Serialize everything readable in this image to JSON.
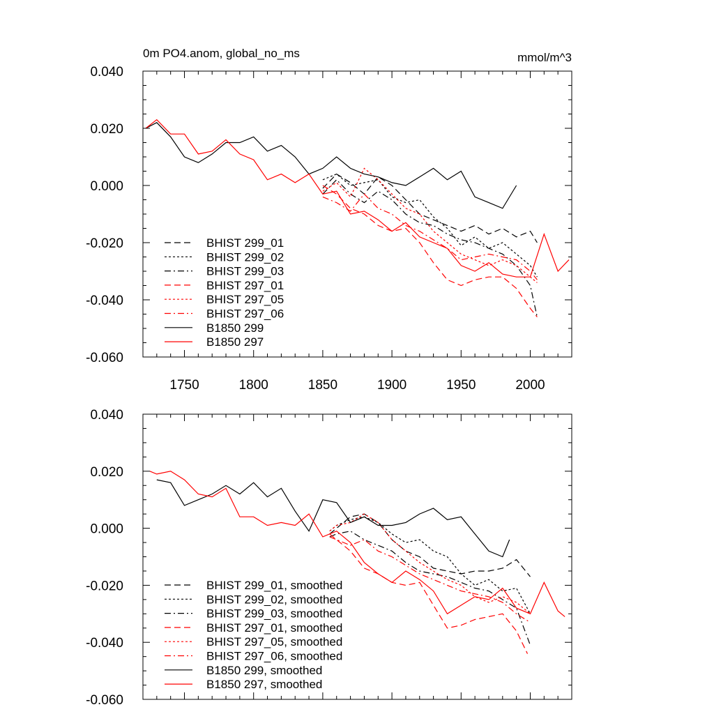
{
  "chart_data": [
    {
      "type": "line",
      "title": "0m PO4.anom, global_no_ms",
      "units": "mmol/m^3",
      "xlim": [
        1720,
        2030
      ],
      "ylim": [
        -0.06,
        0.04
      ],
      "yticks": [
        "0.040",
        "0.020",
        "0.000",
        "-0.020",
        "-0.040",
        "-0.060"
      ],
      "xticks": [
        "1750",
        "1800",
        "1850",
        "1900",
        "1950",
        "2000"
      ],
      "grid": false,
      "legend_position": "lower-left",
      "series": [
        {
          "name": "BHIST 299_01",
          "color": "#000000",
          "dash": "long-dash",
          "x": [
            1850,
            1860,
            1870,
            1880,
            1890,
            1900,
            1910,
            1920,
            1930,
            1940,
            1950,
            1960,
            1970,
            1980,
            1990,
            2000,
            2005
          ],
          "y": [
            -0.001,
            0.004,
            0.001,
            -0.003,
            0.003,
            0.0,
            -0.005,
            -0.01,
            -0.012,
            -0.014,
            -0.016,
            -0.014,
            -0.017,
            -0.015,
            -0.018,
            -0.016,
            -0.02
          ]
        },
        {
          "name": "BHIST 299_02",
          "color": "#000000",
          "dash": "short-dash",
          "x": [
            1850,
            1860,
            1870,
            1880,
            1890,
            1900,
            1910,
            1920,
            1930,
            1940,
            1950,
            1960,
            1970,
            1980,
            1990,
            2000,
            2005
          ],
          "y": [
            0.002,
            0.004,
            0.0,
            0.001,
            0.002,
            -0.004,
            -0.006,
            -0.005,
            -0.011,
            -0.015,
            -0.021,
            -0.018,
            -0.022,
            -0.02,
            -0.024,
            -0.028,
            -0.032
          ]
        },
        {
          "name": "BHIST 299_03",
          "color": "#000000",
          "dash": "dash-dot",
          "x": [
            1850,
            1860,
            1870,
            1880,
            1890,
            1900,
            1910,
            1920,
            1930,
            1940,
            1950,
            1960,
            1970,
            1980,
            1990,
            2000,
            2005
          ],
          "y": [
            -0.003,
            0.002,
            -0.003,
            -0.006,
            -0.002,
            -0.005,
            -0.01,
            -0.013,
            -0.014,
            -0.017,
            -0.019,
            -0.02,
            -0.022,
            -0.024,
            -0.028,
            -0.035,
            -0.046
          ]
        },
        {
          "name": "BHIST 297_01",
          "color": "#ff0000",
          "dash": "long-dash",
          "x": [
            1850,
            1860,
            1870,
            1880,
            1890,
            1900,
            1910,
            1920,
            1930,
            1940,
            1950,
            1960,
            1970,
            1980,
            1990,
            2000,
            2005
          ],
          "y": [
            0.0,
            -0.003,
            -0.008,
            -0.01,
            -0.014,
            -0.016,
            -0.015,
            -0.02,
            -0.027,
            -0.033,
            -0.035,
            -0.033,
            -0.032,
            -0.032,
            -0.036,
            -0.043,
            -0.046
          ]
        },
        {
          "name": "BHIST 297_05",
          "color": "#ff0000",
          "dash": "short-dash",
          "x": [
            1850,
            1860,
            1870,
            1880,
            1890,
            1900,
            1910,
            1920,
            1930,
            1940,
            1950,
            1960,
            1970,
            1980,
            1990,
            2000,
            2005
          ],
          "y": [
            -0.002,
            0.001,
            -0.004,
            0.006,
            0.002,
            -0.003,
            -0.008,
            -0.01,
            -0.016,
            -0.02,
            -0.024,
            -0.026,
            -0.028,
            -0.026,
            -0.028,
            -0.032,
            -0.034
          ]
        },
        {
          "name": "BHIST 297_06",
          "color": "#ff0000",
          "dash": "dash-dot",
          "x": [
            1850,
            1860,
            1870,
            1880,
            1890,
            1900,
            1910,
            1920,
            1930,
            1940,
            1950,
            1960,
            1970,
            1980,
            1990,
            2000,
            2005
          ],
          "y": [
            -0.004,
            -0.006,
            -0.009,
            -0.003,
            -0.008,
            -0.01,
            -0.014,
            -0.016,
            -0.019,
            -0.022,
            -0.026,
            -0.025,
            -0.024,
            -0.025,
            -0.026,
            -0.03,
            -0.033
          ]
        },
        {
          "name": "B1850 299",
          "color": "#000000",
          "dash": "solid",
          "x": [
            1722,
            1730,
            1740,
            1750,
            1760,
            1770,
            1780,
            1790,
            1800,
            1810,
            1820,
            1830,
            1840,
            1850,
            1860,
            1870,
            1880,
            1890,
            1900,
            1910,
            1920,
            1930,
            1940,
            1950,
            1960,
            1970,
            1980,
            1990
          ],
          "y": [
            0.02,
            0.022,
            0.017,
            0.01,
            0.008,
            0.011,
            0.015,
            0.015,
            0.017,
            0.012,
            0.014,
            0.01,
            0.004,
            0.006,
            0.01,
            0.006,
            0.004,
            0.003,
            0.001,
            0.0,
            0.003,
            0.006,
            0.002,
            0.005,
            -0.004,
            -0.006,
            -0.008,
            0.0
          ]
        },
        {
          "name": "B1850 297",
          "color": "#ff0000",
          "dash": "solid",
          "x": [
            1722,
            1730,
            1740,
            1750,
            1760,
            1770,
            1780,
            1790,
            1800,
            1810,
            1820,
            1830,
            1840,
            1850,
            1860,
            1870,
            1880,
            1890,
            1900,
            1910,
            1920,
            1930,
            1940,
            1950,
            1960,
            1970,
            1980,
            1990,
            2000,
            2010,
            2020,
            2028
          ],
          "y": [
            0.02,
            0.023,
            0.018,
            0.018,
            0.011,
            0.012,
            0.016,
            0.011,
            0.009,
            0.002,
            0.004,
            0.001,
            0.004,
            -0.003,
            -0.002,
            -0.01,
            -0.009,
            -0.012,
            -0.016,
            -0.013,
            -0.018,
            -0.02,
            -0.022,
            -0.028,
            -0.03,
            -0.027,
            -0.031,
            -0.032,
            -0.032,
            -0.017,
            -0.03,
            -0.026
          ]
        }
      ]
    },
    {
      "type": "line",
      "title": "",
      "units": "",
      "xlim": [
        1720,
        2030
      ],
      "ylim": [
        -0.06,
        0.04
      ],
      "yticks": [
        "0.040",
        "0.020",
        "0.000",
        "-0.020",
        "-0.040",
        "-0.060"
      ],
      "xticks": [],
      "grid": false,
      "legend_position": "lower-left",
      "series": [
        {
          "name": "BHIST 299_01, smoothed",
          "color": "#000000",
          "dash": "long-dash",
          "x": [
            1855,
            1860,
            1870,
            1880,
            1890,
            1900,
            1910,
            1920,
            1930,
            1940,
            1950,
            1960,
            1970,
            1980,
            1990,
            2000
          ],
          "y": [
            -0.002,
            0.0,
            0.004,
            0.005,
            0.002,
            -0.004,
            -0.008,
            -0.01,
            -0.014,
            -0.015,
            -0.016,
            -0.015,
            -0.015,
            -0.014,
            -0.011,
            -0.017
          ]
        },
        {
          "name": "BHIST 299_02, smoothed",
          "color": "#000000",
          "dash": "short-dash",
          "x": [
            1855,
            1860,
            1870,
            1880,
            1890,
            1900,
            1910,
            1920,
            1930,
            1940,
            1950,
            1960,
            1970,
            1980,
            1990,
            2000
          ],
          "y": [
            -0.001,
            0.001,
            0.003,
            0.004,
            0.002,
            -0.002,
            -0.005,
            -0.004,
            -0.008,
            -0.01,
            -0.016,
            -0.02,
            -0.018,
            -0.022,
            -0.021,
            -0.03
          ]
        },
        {
          "name": "BHIST 299_03, smoothed",
          "color": "#000000",
          "dash": "dash-dot",
          "x": [
            1855,
            1860,
            1870,
            1880,
            1890,
            1900,
            1910,
            1920,
            1930,
            1940,
            1950,
            1960,
            1970,
            1980,
            1990,
            2000
          ],
          "y": [
            -0.003,
            -0.002,
            -0.001,
            -0.004,
            -0.006,
            -0.008,
            -0.012,
            -0.015,
            -0.016,
            -0.017,
            -0.019,
            -0.021,
            -0.022,
            -0.025,
            -0.028,
            -0.041
          ]
        },
        {
          "name": "BHIST 297_01, smoothed",
          "color": "#ff0000",
          "dash": "long-dash",
          "x": [
            1855,
            1860,
            1870,
            1880,
            1890,
            1900,
            1910,
            1920,
            1930,
            1940,
            1950,
            1960,
            1970,
            1980,
            1990,
            1998
          ],
          "y": [
            -0.002,
            -0.004,
            -0.008,
            -0.014,
            -0.016,
            -0.019,
            -0.02,
            -0.019,
            -0.027,
            -0.035,
            -0.034,
            -0.032,
            -0.031,
            -0.03,
            -0.036,
            -0.044
          ]
        },
        {
          "name": "BHIST 297_05, smoothed",
          "color": "#ff0000",
          "dash": "short-dash",
          "x": [
            1855,
            1860,
            1870,
            1880,
            1890,
            1900,
            1910,
            1920,
            1930,
            1940,
            1950,
            1960,
            1970,
            1980,
            1990,
            2000
          ],
          "y": [
            -0.001,
            0.001,
            0.002,
            0.005,
            0.002,
            -0.004,
            -0.008,
            -0.012,
            -0.015,
            -0.018,
            -0.02,
            -0.024,
            -0.026,
            -0.024,
            -0.026,
            -0.03
          ]
        },
        {
          "name": "BHIST 297_06, smoothed",
          "color": "#ff0000",
          "dash": "dash-dot",
          "x": [
            1855,
            1860,
            1870,
            1880,
            1890,
            1900,
            1910,
            1920,
            1930,
            1940,
            1950,
            1960,
            1970,
            1980,
            1990,
            2000
          ],
          "y": [
            -0.003,
            -0.004,
            -0.006,
            -0.004,
            -0.008,
            -0.01,
            -0.013,
            -0.016,
            -0.018,
            -0.02,
            -0.022,
            -0.023,
            -0.024,
            -0.026,
            -0.03,
            -0.033
          ]
        },
        {
          "name": "B1850 299, smoothed",
          "color": "#000000",
          "dash": "solid",
          "x": [
            1730,
            1740,
            1750,
            1760,
            1770,
            1780,
            1790,
            1800,
            1810,
            1820,
            1830,
            1840,
            1850,
            1860,
            1870,
            1880,
            1890,
            1900,
            1910,
            1920,
            1930,
            1940,
            1950,
            1960,
            1970,
            1980,
            1985
          ],
          "y": [
            0.017,
            0.016,
            0.008,
            0.01,
            0.012,
            0.015,
            0.012,
            0.016,
            0.011,
            0.014,
            0.006,
            -0.001,
            0.01,
            0.009,
            0.002,
            0.004,
            0.001,
            0.001,
            0.002,
            0.005,
            0.007,
            0.003,
            0.004,
            -0.002,
            -0.008,
            -0.01,
            -0.004
          ]
        },
        {
          "name": "B1850 297, smoothed",
          "color": "#ff0000",
          "dash": "solid",
          "x": [
            1725,
            1730,
            1740,
            1750,
            1760,
            1770,
            1780,
            1790,
            1800,
            1810,
            1820,
            1830,
            1840,
            1850,
            1860,
            1870,
            1880,
            1890,
            1900,
            1910,
            1920,
            1930,
            1940,
            1950,
            1960,
            1970,
            1980,
            1990,
            2000,
            2010,
            2020,
            2025
          ],
          "y": [
            0.02,
            0.019,
            0.02,
            0.017,
            0.012,
            0.011,
            0.014,
            0.004,
            0.004,
            0.001,
            0.002,
            0.001,
            0.005,
            -0.003,
            -0.001,
            -0.005,
            -0.012,
            -0.016,
            -0.019,
            -0.015,
            -0.018,
            -0.022,
            -0.03,
            -0.027,
            -0.024,
            -0.025,
            -0.021,
            -0.028,
            -0.03,
            -0.019,
            -0.029,
            -0.031
          ]
        }
      ]
    }
  ]
}
